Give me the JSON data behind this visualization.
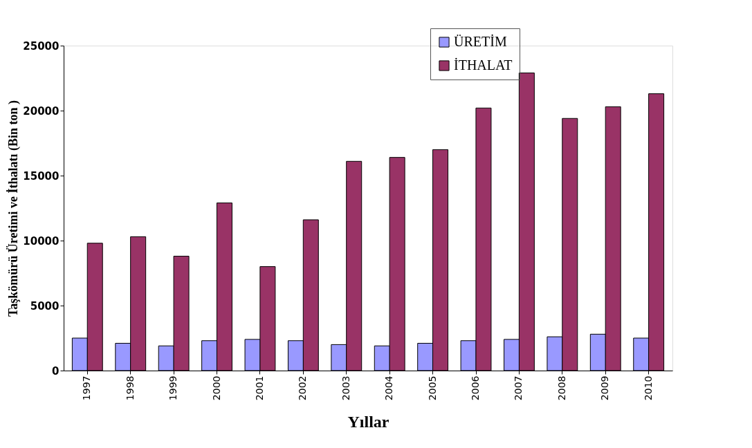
{
  "chart_data": {
    "type": "bar",
    "xlabel": "Yıllar",
    "ylabel": "Taşkömürü Üretimi ve İthalatı  (Bin ton )",
    "categories": [
      "1997",
      "1998",
      "1999",
      "2000",
      "2001",
      "2002",
      "2003",
      "2004",
      "2005",
      "2006",
      "2007",
      "2008",
      "2009",
      "2010"
    ],
    "series": [
      {
        "name": "ÜRETİM",
        "color": "#9999ff",
        "values": [
          2500,
          2100,
          1900,
          2300,
          2400,
          2300,
          2000,
          1900,
          2100,
          2300,
          2400,
          2600,
          2800,
          2500
        ]
      },
      {
        "name": "İTHALAT",
        "color": "#993366",
        "values": [
          9800,
          10300,
          8800,
          12900,
          8000,
          11600,
          16100,
          16400,
          17000,
          20200,
          22900,
          19400,
          20300,
          21300
        ]
      }
    ],
    "ylim": [
      0,
      25000
    ],
    "yticks": [
      0,
      5000,
      10000,
      15000,
      20000,
      25000
    ],
    "grid": false,
    "legend": "top right"
  }
}
